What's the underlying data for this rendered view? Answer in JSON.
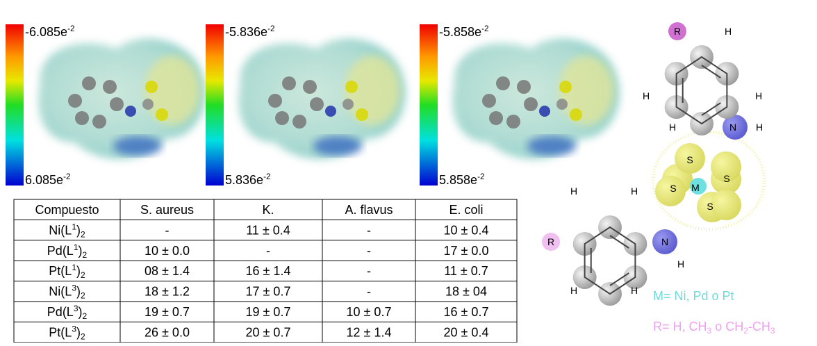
{
  "scales": [
    {
      "top": {
        "base": "-6.085e",
        "sup": "-2"
      },
      "bottom": {
        "base": "6.085e",
        "sup": "-2"
      }
    },
    {
      "top": {
        "base": "-5.836e",
        "sup": "-2"
      },
      "bottom": {
        "base": "5.836e",
        "sup": "-2"
      }
    },
    {
      "top": {
        "base": "-5.858e",
        "sup": "-2"
      },
      "bottom": {
        "base": "5.858e",
        "sup": "-2"
      }
    }
  ],
  "table": {
    "header": [
      "Compuesto",
      "S. aureus",
      "K.",
      "A. flavus",
      "E. coli"
    ],
    "rows": [
      [
        {
          "base": "Ni(L",
          "sup": "1",
          "close": ")",
          "sub": "2"
        },
        "-",
        "11 ± 0.4",
        "-",
        "10 ± 0.4"
      ],
      [
        {
          "base": "Pd(L",
          "sup": "1",
          "close": ")",
          "sub": "2"
        },
        "10 ± 0.0",
        "-",
        "-",
        "17 ± 0.0"
      ],
      [
        {
          "base": "Pt(L",
          "sup": "1",
          "close": ")",
          "sub": "2"
        },
        "08 ± 1.4",
        "16 ± 1.4",
        "-",
        "11 ± 0.7"
      ],
      [
        {
          "base": "Ni(L",
          "sup": "3",
          "close": ")",
          "sub": "2"
        },
        "18 ± 1.2",
        "17 ± 0.7",
        "-",
        "18 ± 04"
      ],
      [
        {
          "base": "Pd(L",
          "sup": "3",
          "close": ")",
          "sub": "2"
        },
        "19 ± 0.7",
        "19 ± 0.7",
        "10 ± 0.7",
        "16 ± 0.7"
      ],
      [
        {
          "base": "Pt(L",
          "sup": "3",
          "close": ")",
          "sub": "2"
        },
        "26 ± 0.0",
        "20 ± 0.7",
        "12 ± 1.4",
        "20 ± 0.4"
      ]
    ]
  },
  "structure": {
    "atoms": [
      "R",
      "H",
      "H",
      "H",
      "H",
      "N",
      "H",
      "S",
      "S",
      "S",
      "M",
      "S",
      "H",
      "H",
      "R",
      "N",
      "H",
      "H",
      "H"
    ],
    "legend_m": [
      {
        "text": "M= Ni, Pd o Pt"
      }
    ],
    "legend_r": [
      {
        "text": "R= H, CH"
      },
      {
        "text": "3",
        "sub": true
      },
      {
        "text": " o CH"
      },
      {
        "text": "2",
        "sub": true
      },
      {
        "text": "-CH"
      },
      {
        "text": "3",
        "sub": true
      }
    ]
  }
}
